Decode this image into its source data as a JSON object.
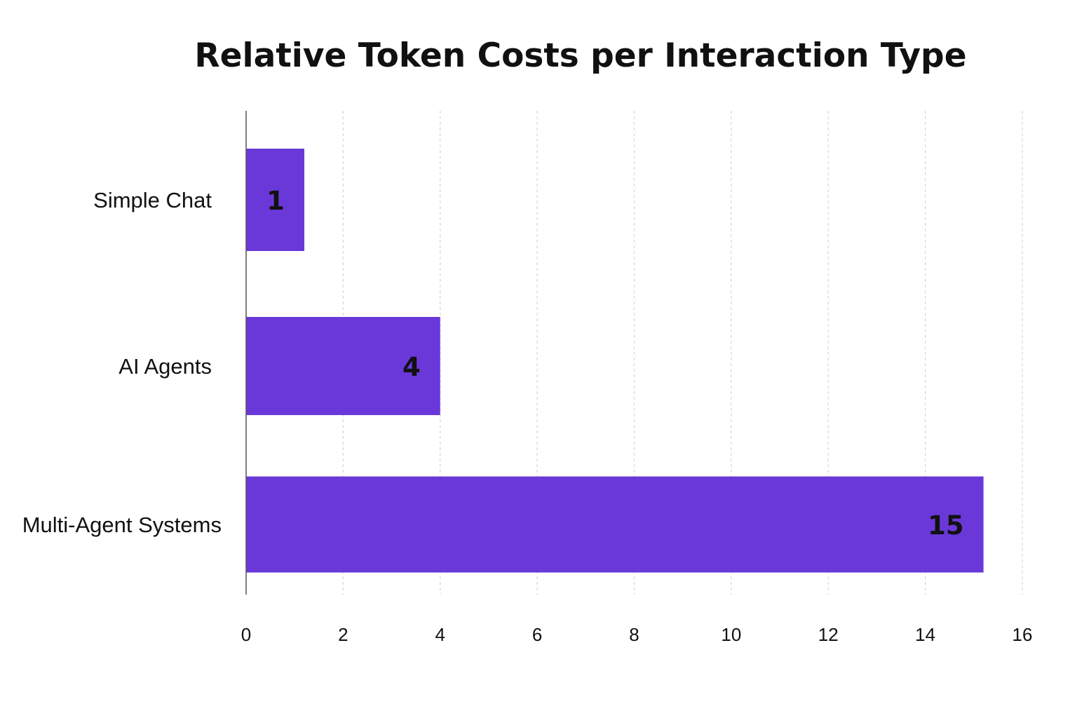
{
  "chart_data": {
    "type": "bar",
    "orientation": "horizontal",
    "title": "Relative Token Costs per Interaction Type",
    "categories": [
      "Simple Chat",
      "AI Agents",
      "Multi-Agent Systems"
    ],
    "values": [
      1.2,
      4,
      15.2
    ],
    "data_labels": [
      "1",
      "4",
      "15"
    ],
    "xlim": [
      0,
      16
    ],
    "xticks": [
      0,
      2,
      4,
      6,
      8,
      10,
      12,
      14,
      16
    ],
    "xlabel": "",
    "ylabel": "",
    "grid": "vertical dashed",
    "legend": "none",
    "colors": {
      "bar": "#6a38d8",
      "text": "#111111",
      "grid": "#d6d6d6",
      "axis": "#555555"
    }
  }
}
